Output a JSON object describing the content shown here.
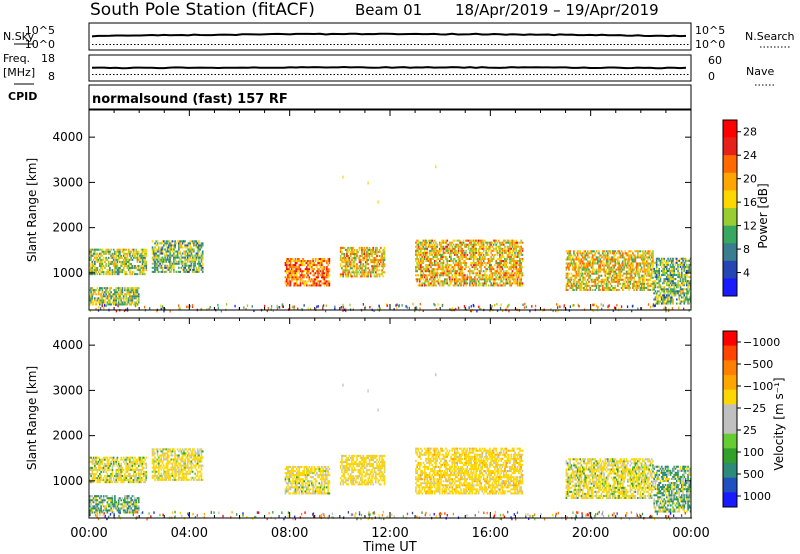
{
  "header": {
    "station": "South Pole Station (fitACF)",
    "beam": "Beam 01",
    "dates": "18/Apr/2019 – 19/Apr/2019"
  },
  "strip_labels": {
    "nsky": "N.Sky",
    "nsky_top": "10^5",
    "nsky_bottom": "10^0",
    "nsearch": "N.Search",
    "nsearch_top": "10^5",
    "nsearch_bottom": "10^0",
    "freq": "Freq.",
    "freq_unit": "[MHz]",
    "freq_top": "18",
    "freq_bottom": "8",
    "nave": "Nave",
    "nave_top": "60",
    "nave_bottom": "0",
    "cpid": "CPID",
    "cpid_text": "normalsound (fast) 157 RF"
  },
  "chart_data": [
    {
      "type": "heatmap",
      "title": "",
      "xlabel": "Time UT",
      "ylabel": "Slant Range [km]",
      "x_ticks": [
        "00:00",
        "04:00",
        "08:00",
        "12:00",
        "16:00",
        "20:00",
        "00:00"
      ],
      "y_ticks": [
        1000,
        2000,
        3000,
        4000
      ],
      "xlim_hours": [
        0,
        24
      ],
      "ylim_km": [
        180,
        4600
      ],
      "colorbar": {
        "label": "Power [dB]",
        "ticks": [
          4,
          8,
          12,
          16,
          20,
          24,
          28
        ],
        "range": [
          0,
          30
        ],
        "colors": [
          "#1a1aff",
          "#2346b4",
          "#3a7d8f",
          "#38a860",
          "#9acd32",
          "#ffd700",
          "#ffa500",
          "#ff6a00",
          "#e8201a",
          "#ff0000"
        ]
      },
      "echo_regions": [
        {
          "t_start": 0.0,
          "t_end": 2.3,
          "r_min": 950,
          "r_max": 1500,
          "mean_db": 14
        },
        {
          "t_start": 2.5,
          "t_end": 4.5,
          "r_min": 1000,
          "r_max": 1700,
          "mean_db": 12
        },
        {
          "t_start": 0.0,
          "t_end": 2.0,
          "r_min": 280,
          "r_max": 650,
          "mean_db": 13
        },
        {
          "t_start": 7.8,
          "t_end": 9.6,
          "r_min": 700,
          "r_max": 1300,
          "mean_db": 22
        },
        {
          "t_start": 10.0,
          "t_end": 11.8,
          "r_min": 900,
          "r_max": 1550,
          "mean_db": 18
        },
        {
          "t_start": 13.0,
          "t_end": 17.3,
          "r_min": 700,
          "r_max": 1700,
          "mean_db": 18
        },
        {
          "t_start": 19.0,
          "t_end": 22.5,
          "r_min": 600,
          "r_max": 1500,
          "mean_db": 17
        },
        {
          "t_start": 22.5,
          "t_end": 24.0,
          "r_min": 300,
          "r_max": 1300,
          "mean_db": 12
        }
      ]
    },
    {
      "type": "heatmap",
      "title": "",
      "xlabel": "Time UT",
      "ylabel": "Slant Range [km]",
      "x_ticks": [
        "00:00",
        "04:00",
        "08:00",
        "12:00",
        "16:00",
        "20:00",
        "00:00"
      ],
      "y_ticks": [
        1000,
        2000,
        3000,
        4000
      ],
      "xlim_hours": [
        0,
        24
      ],
      "ylim_km": [
        180,
        4600
      ],
      "colorbar": {
        "label": "Velocity [m s⁻¹]",
        "ticks": [
          "1000",
          "500",
          "100",
          "25",
          "−25",
          "−100",
          "−500",
          "−1000"
        ],
        "colors": [
          "#1a1aff",
          "#2050c0",
          "#2b8a7a",
          "#33a02c",
          "#66cc33",
          "#c0c0c0",
          "#c0c0c0",
          "#ffd700",
          "#ffa500",
          "#ff7f00",
          "#ff4500",
          "#ff0000"
        ]
      },
      "echo_regions": [
        {
          "t_start": 0.0,
          "t_end": 2.3,
          "r_min": 950,
          "r_max": 1500,
          "mean_vel": -150
        },
        {
          "t_start": 2.5,
          "t_end": 4.5,
          "r_min": 1000,
          "r_max": 1700,
          "mean_vel": -200
        },
        {
          "t_start": 0.0,
          "t_end": 2.0,
          "r_min": 280,
          "r_max": 650,
          "mean_vel": 80
        },
        {
          "t_start": 7.8,
          "t_end": 9.6,
          "r_min": 700,
          "r_max": 1300,
          "mean_vel": -180
        },
        {
          "t_start": 10.0,
          "t_end": 11.8,
          "r_min": 900,
          "r_max": 1550,
          "mean_vel": -250
        },
        {
          "t_start": 13.0,
          "t_end": 17.3,
          "r_min": 700,
          "r_max": 1700,
          "mean_vel": -300
        },
        {
          "t_start": 19.0,
          "t_end": 22.5,
          "r_min": 600,
          "r_max": 1500,
          "mean_vel": -150
        },
        {
          "t_start": 22.5,
          "t_end": 24.0,
          "r_min": 300,
          "r_max": 1300,
          "mean_vel": 40
        }
      ]
    }
  ]
}
